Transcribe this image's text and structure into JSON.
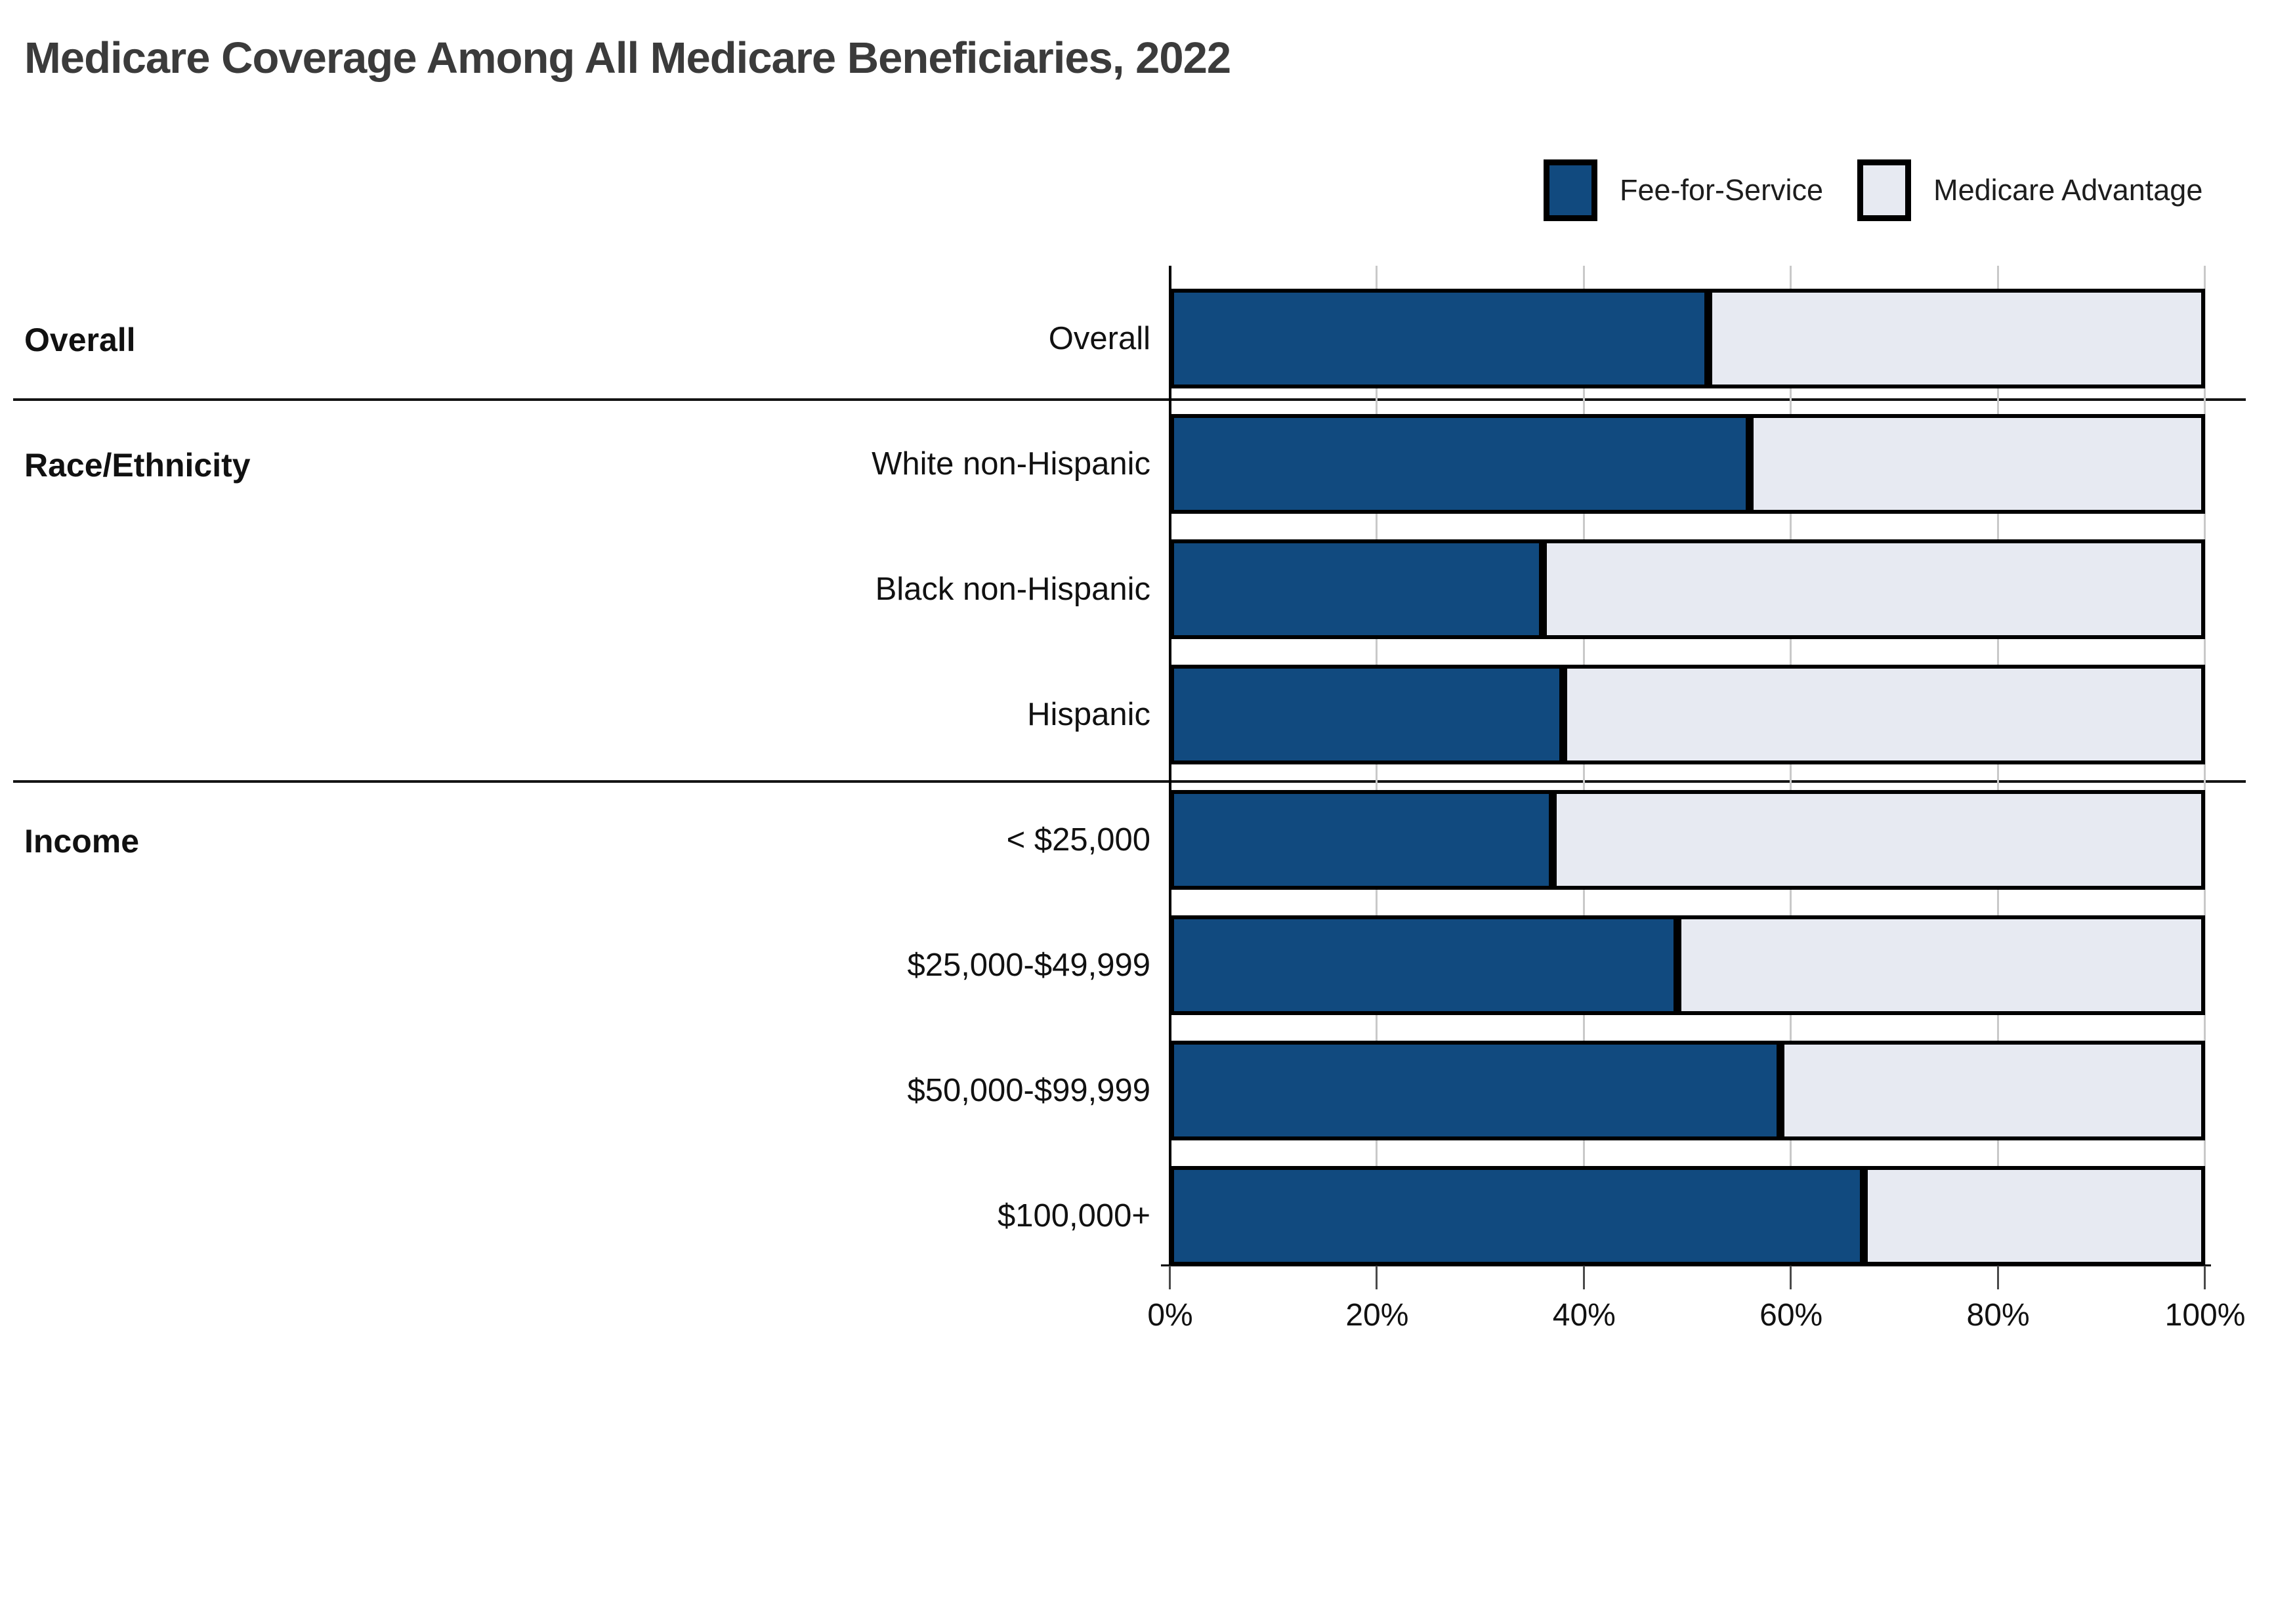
{
  "title": "Medicare Coverage Among All Medicare Beneficiaries, 2022",
  "chart_data": {
    "type": "bar",
    "orientation": "horizontal",
    "stacked": true,
    "title": "Medicare Coverage Among All Medicare Beneficiaries, 2022",
    "categories": [
      "Overall",
      "White non-Hispanic",
      "Black non-Hispanic",
      "Hispanic",
      "< $25,000",
      "$25,000-$49,999",
      "$50,000-$99,999",
      "$100,000+"
    ],
    "groups": [
      {
        "label": "Overall",
        "categories": [
          "Overall"
        ]
      },
      {
        "label": "Race/Ethnicity",
        "categories": [
          "White non-Hispanic",
          "Black non-Hispanic",
          "Hispanic"
        ]
      },
      {
        "label": "Income",
        "categories": [
          "< $25,000",
          "$25,000-$49,999",
          "$50,000-$99,999",
          "$100,000+"
        ]
      }
    ],
    "series": [
      {
        "name": "Fee-for-Service",
        "color": "#114a7f",
        "values": [
          52,
          56,
          36,
          38,
          37,
          49,
          59,
          67
        ]
      },
      {
        "name": "Medicare Advantage",
        "color": "#e7eaf2",
        "values": [
          48,
          44,
          64,
          62,
          63,
          51,
          41,
          33
        ]
      }
    ],
    "x_ticks": [
      "0%",
      "20%",
      "40%",
      "60%",
      "80%",
      "100%"
    ],
    "xlim": [
      0,
      100
    ],
    "grid": true,
    "legend_position": "top-right",
    "bar_outline_color": "#000000"
  }
}
